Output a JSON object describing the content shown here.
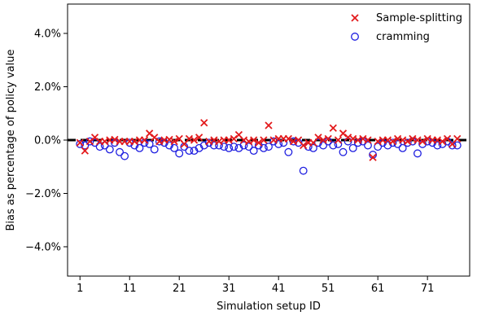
{
  "chart_data": {
    "type": "scatter",
    "title": "",
    "xlabel": "Simulation setup ID",
    "ylabel": "Bias as percentage of policy value",
    "xlim": [
      -1.5,
      79.5
    ],
    "ylim": [
      -5.1,
      5.1
    ],
    "xticks": [
      1,
      11,
      21,
      31,
      41,
      51,
      61,
      71
    ],
    "yticks": [
      -4,
      -2,
      0,
      2,
      4
    ],
    "ytick_labels": [
      "−4.0%",
      "−2.0%",
      "0.0%",
      "2.0%",
      "4.0%"
    ],
    "reference_line": {
      "y": 0,
      "style": "dashed",
      "color": "#000000"
    },
    "legend": {
      "position": "top-right"
    },
    "series": [
      {
        "name": "Sample-splitting",
        "marker": "x",
        "color": "#e31a1c",
        "x": [
          1,
          2,
          3,
          4,
          5,
          6,
          7,
          8,
          9,
          10,
          11,
          12,
          13,
          14,
          15,
          16,
          17,
          18,
          19,
          20,
          21,
          22,
          23,
          24,
          25,
          26,
          27,
          28,
          29,
          30,
          31,
          32,
          33,
          34,
          35,
          36,
          37,
          38,
          39,
          40,
          41,
          42,
          43,
          44,
          45,
          46,
          47,
          48,
          49,
          50,
          51,
          52,
          53,
          54,
          55,
          56,
          57,
          58,
          59,
          60,
          61,
          62,
          63,
          64,
          65,
          66,
          67,
          68,
          69,
          70,
          71,
          72,
          73,
          74,
          75,
          76,
          77
        ],
        "y": [
          -0.1,
          -0.4,
          -0.05,
          0.1,
          -0.05,
          -0.05,
          0.0,
          0.02,
          -0.05,
          -0.05,
          -0.05,
          -0.05,
          0.0,
          0.0,
          0.25,
          0.1,
          -0.05,
          0.0,
          0.02,
          -0.05,
          0.05,
          -0.15,
          0.05,
          0.0,
          0.1,
          0.65,
          -0.05,
          0.0,
          -0.05,
          0.0,
          0.0,
          0.05,
          0.2,
          0.0,
          -0.05,
          0.0,
          -0.1,
          0.0,
          0.55,
          0.0,
          0.05,
          0.05,
          0.05,
          -0.05,
          0.0,
          -0.2,
          -0.1,
          -0.1,
          0.1,
          0.0,
          0.05,
          0.45,
          0.0,
          0.25,
          0.1,
          0.05,
          0.0,
          0.05,
          0.0,
          -0.65,
          -0.05,
          0.0,
          0.0,
          -0.05,
          0.05,
          0.0,
          -0.05,
          0.05,
          0.0,
          -0.05,
          0.05,
          0.0,
          0.0,
          -0.05,
          0.05,
          -0.15,
          0.05
        ]
      },
      {
        "name": "cramming",
        "marker": "o",
        "color": "#1f1fe0",
        "x": [
          1,
          2,
          3,
          4,
          5,
          6,
          7,
          8,
          9,
          10,
          11,
          12,
          13,
          14,
          15,
          16,
          17,
          18,
          19,
          20,
          21,
          22,
          23,
          24,
          25,
          26,
          27,
          28,
          29,
          30,
          31,
          32,
          33,
          34,
          35,
          36,
          37,
          38,
          39,
          40,
          41,
          42,
          43,
          44,
          45,
          46,
          47,
          48,
          49,
          50,
          51,
          52,
          53,
          54,
          55,
          56,
          57,
          58,
          59,
          60,
          61,
          62,
          63,
          64,
          65,
          66,
          67,
          68,
          69,
          70,
          71,
          72,
          73,
          74,
          75,
          76,
          77
        ],
        "y": [
          -0.15,
          -0.2,
          -0.05,
          -0.1,
          -0.25,
          -0.2,
          -0.35,
          -0.1,
          -0.45,
          -0.6,
          -0.1,
          -0.2,
          -0.3,
          -0.1,
          -0.15,
          -0.35,
          -0.05,
          -0.1,
          -0.2,
          -0.3,
          -0.5,
          -0.25,
          -0.4,
          -0.4,
          -0.3,
          -0.2,
          -0.1,
          -0.2,
          -0.2,
          -0.25,
          -0.3,
          -0.25,
          -0.3,
          -0.2,
          -0.25,
          -0.4,
          -0.2,
          -0.3,
          -0.25,
          -0.05,
          -0.15,
          -0.1,
          -0.45,
          -0.05,
          -0.1,
          -1.15,
          -0.25,
          -0.3,
          -0.1,
          -0.2,
          -0.05,
          -0.2,
          -0.15,
          -0.45,
          -0.05,
          -0.3,
          -0.1,
          -0.05,
          -0.2,
          -0.55,
          -0.25,
          -0.1,
          -0.2,
          -0.1,
          -0.15,
          -0.3,
          -0.1,
          -0.05,
          -0.5,
          -0.15,
          -0.05,
          -0.1,
          -0.2,
          -0.15,
          -0.05,
          -0.2,
          -0.2
        ]
      }
    ]
  }
}
